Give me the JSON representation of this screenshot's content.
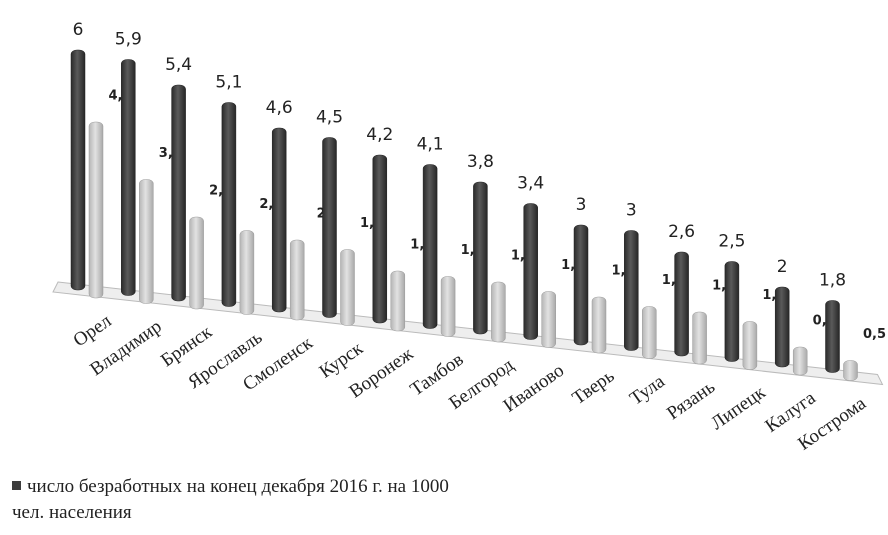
{
  "chart_data": {
    "type": "bar3d",
    "categories": [
      "Орел",
      "Владимир",
      "Брянск",
      "Ярославль",
      "Смоленск",
      "Курск",
      "Воронеж",
      "Тамбов",
      "Белгород",
      "Иваново",
      "Тверь",
      "Тула",
      "Рязань",
      "Липецк",
      "Калуга",
      "Кострома"
    ],
    "series": [
      {
        "name": "число безработных на конец декабря 2016 г. на 1000 чел. населения",
        "color": "#3d3d3d",
        "values": [
          6,
          5.9,
          5.4,
          5.1,
          4.6,
          4.5,
          4.2,
          4.1,
          3.8,
          3.4,
          3,
          3,
          2.6,
          2.5,
          2,
          1.8
        ],
        "value_labels": [
          "6",
          "5,9",
          "5,4",
          "5,1",
          "4,6",
          "4,5",
          "4,2",
          "4,1",
          "3,8",
          "3,4",
          "3",
          "3",
          "2,6",
          "2,5",
          "2",
          "1,8"
        ]
      },
      {
        "color": "#c9c9c9",
        "values": [
          4.4,
          3.1,
          2.3,
          2.1,
          2,
          1.9,
          1.5,
          1.5,
          1.5,
          1.4,
          1.4,
          1.3,
          1.3,
          1.2,
          0.7,
          0.5
        ],
        "value_labels": [
          "4,4",
          "3,1",
          "2,3",
          "2,1",
          "2",
          "1,9",
          "1,5",
          "1,5",
          "1,5",
          "1,4",
          "1,4",
          "1,3",
          "1,3",
          "1,2",
          "0,7",
          "0,5"
        ]
      }
    ]
  }
}
